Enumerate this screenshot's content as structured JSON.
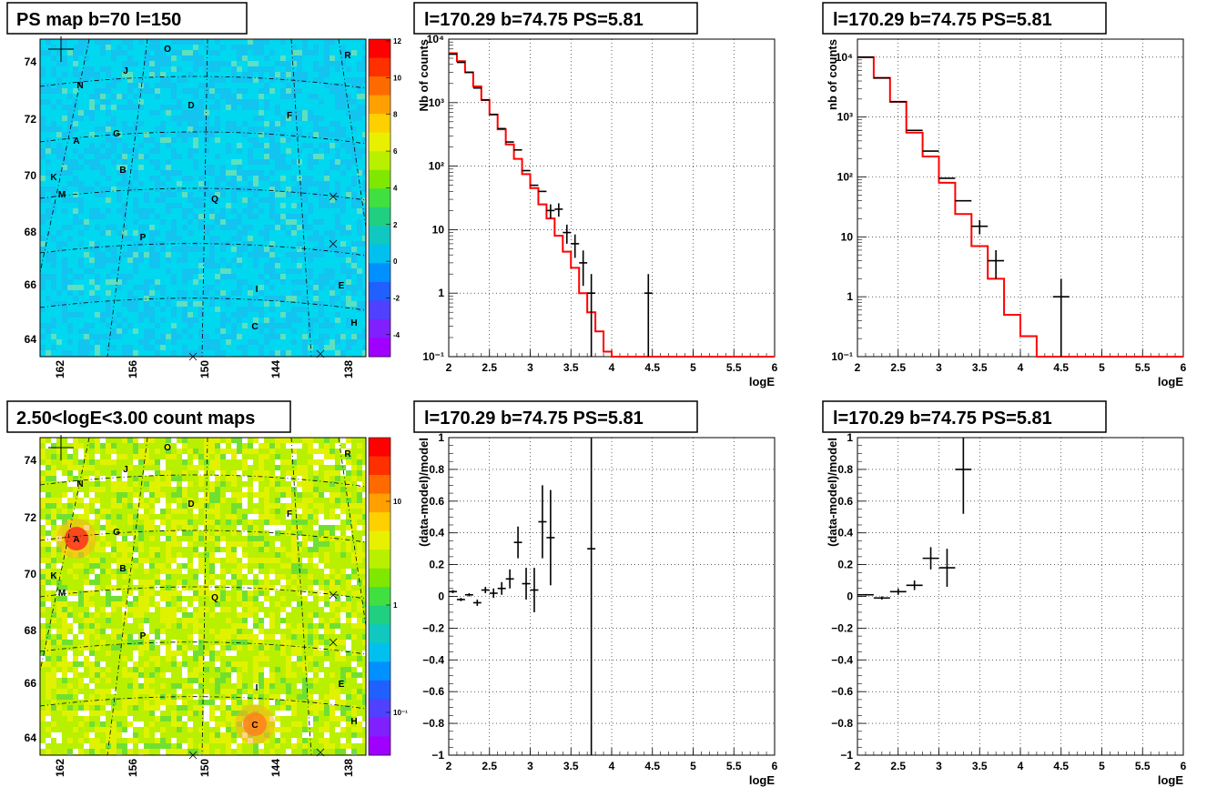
{
  "maps": [
    {
      "title": "PS map b=70 l=150",
      "colorbar": {
        "scale": "linear",
        "range": [
          -5,
          12
        ],
        "ticks": [
          "12",
          "10",
          "8",
          "6",
          "4",
          "2",
          "0",
          "-2",
          "-4"
        ]
      },
      "base_colors": [
        "#00d8f0",
        "#12c4ef",
        "#5ce0c0"
      ],
      "hotspots": []
    },
    {
      "title": "2.50<logE<3.00 count maps",
      "colorbar": {
        "scale": "log",
        "ticks": [
          "10",
          "1",
          "10⁻¹"
        ]
      },
      "base_colors": [
        "#b8f000",
        "#e0f200",
        "#70e030",
        "#ffffff"
      ],
      "hotspots": [
        {
          "source": "A",
          "color": "#ff3020"
        },
        {
          "source": "C",
          "color": "#ff8020"
        }
      ]
    }
  ],
  "map_axes": {
    "y_ticks": [
      "74",
      "72",
      "70",
      "68",
      "66",
      "64"
    ],
    "x_ticks": [
      "162",
      "156",
      "150",
      "144",
      "138"
    ]
  },
  "sources": [
    "O",
    "R",
    "J",
    "N",
    "D",
    "F",
    "A",
    "G",
    "B",
    "K",
    "M",
    "Q",
    "P",
    "I",
    "E",
    "C",
    "H"
  ],
  "chart_data": [
    {
      "type": "line",
      "title": "l=170.29 b=74.75 PS=5.81",
      "xlabel": "logE",
      "ylabel": "Nb of counts",
      "xlim": [
        2,
        6
      ],
      "ylim": [
        0.1,
        10000
      ],
      "yscale": "log",
      "x_ticks": [
        "2",
        "2.5",
        "3",
        "3.5",
        "4",
        "4.5",
        "5",
        "5.5",
        "6"
      ],
      "y_ticks": [
        "10⁴",
        "10³",
        "10²",
        "10",
        "1",
        "10⁻¹"
      ],
      "grid": true,
      "series": [
        {
          "kind": "step",
          "color": "#ff0000",
          "edges": [
            2.0,
            2.1,
            2.2,
            2.3,
            2.4,
            2.5,
            2.6,
            2.7,
            2.8,
            2.9,
            3.0,
            3.1,
            3.2,
            3.3,
            3.4,
            3.5,
            3.6,
            3.7,
            3.8,
            3.9,
            4.0,
            6.0
          ],
          "values": [
            6000,
            4500,
            3000,
            1800,
            1100,
            650,
            380,
            220,
            130,
            75,
            45,
            25,
            15,
            8,
            4.5,
            2.5,
            1.0,
            0.5,
            0.25,
            0.12,
            0.1
          ]
        },
        {
          "kind": "errorbars",
          "color": "#000000",
          "half_width": 0.05,
          "points": [
            [
              2.05,
              5800,
              0
            ],
            [
              2.15,
              4300,
              0
            ],
            [
              2.25,
              3000,
              0
            ],
            [
              2.35,
              1700,
              0
            ],
            [
              2.45,
              1100,
              0
            ],
            [
              2.55,
              650,
              0
            ],
            [
              2.65,
              390,
              0
            ],
            [
              2.75,
              240,
              0
            ],
            [
              2.85,
              180,
              0
            ],
            [
              2.95,
              85,
              0
            ],
            [
              3.05,
              50,
              0
            ],
            [
              3.15,
              40,
              0
            ],
            [
              3.25,
              20,
              5
            ],
            [
              3.35,
              21,
              5
            ],
            [
              3.45,
              9,
              3
            ],
            [
              3.55,
              6,
              2.4
            ],
            [
              3.65,
              3,
              1.7
            ],
            [
              3.75,
              1,
              1
            ],
            [
              4.45,
              1,
              1
            ]
          ]
        }
      ]
    },
    {
      "type": "line",
      "title": "l=170.29 b=74.75 PS=5.81",
      "xlabel": "logE",
      "ylabel": "nb of counts",
      "xlim": [
        2,
        6
      ],
      "ylim": [
        0.1,
        20000
      ],
      "yscale": "log",
      "x_ticks": [
        "2",
        "2.5",
        "3",
        "3.5",
        "4",
        "4.5",
        "5",
        "5.5",
        "6"
      ],
      "y_ticks": [
        "10⁴",
        "10³",
        "10²",
        "10",
        "1",
        "10⁻¹"
      ],
      "grid": true,
      "series": [
        {
          "kind": "step",
          "color": "#ff0000",
          "edges": [
            2.0,
            2.2,
            2.4,
            2.6,
            2.8,
            3.0,
            3.2,
            3.4,
            3.6,
            3.8,
            4.0,
            4.2,
            6.0
          ],
          "values": [
            10000,
            4500,
            1800,
            550,
            220,
            80,
            24,
            7,
            2,
            0.5,
            0.22,
            0.1
          ]
        },
        {
          "kind": "errorbars",
          "color": "#000000",
          "half_width": 0.1,
          "points": [
            [
              2.1,
              10000,
              0
            ],
            [
              2.3,
              4500,
              0
            ],
            [
              2.5,
              1800,
              0
            ],
            [
              2.7,
              600,
              0
            ],
            [
              2.9,
              270,
              0
            ],
            [
              3.1,
              95,
              0
            ],
            [
              3.3,
              40,
              0
            ],
            [
              3.5,
              15,
              4
            ],
            [
              3.7,
              4,
              2
            ],
            [
              4.5,
              1,
              1
            ]
          ]
        }
      ]
    },
    {
      "type": "scatter",
      "title": "l=170.29 b=74.75 PS=5.81",
      "xlabel": "logE",
      "ylabel": "(data-model)/model",
      "xlim": [
        2,
        6
      ],
      "ylim": [
        -1,
        1
      ],
      "yscale": "linear",
      "x_ticks": [
        "2",
        "2.5",
        "3",
        "3.5",
        "4",
        "4.5",
        "5",
        "5.5",
        "6"
      ],
      "y_ticks": [
        "1",
        "0.8",
        "0.6",
        "0.4",
        "0.2",
        "0",
        "−0.2",
        "−0.4",
        "−0.6",
        "−0.8",
        "−1"
      ],
      "grid": true,
      "series": [
        {
          "kind": "errorbars",
          "color": "#000000",
          "half_width": 0.05,
          "points": [
            [
              2.05,
              0.03,
              0.01
            ],
            [
              2.15,
              -0.02,
              0.01
            ],
            [
              2.25,
              0.01,
              0.01
            ],
            [
              2.35,
              -0.04,
              0.02
            ],
            [
              2.45,
              0.04,
              0.02
            ],
            [
              2.55,
              0.02,
              0.03
            ],
            [
              2.65,
              0.05,
              0.04
            ],
            [
              2.75,
              0.11,
              0.06
            ],
            [
              2.85,
              0.34,
              0.1
            ],
            [
              2.95,
              0.08,
              0.1
            ],
            [
              3.05,
              0.04,
              0.14
            ],
            [
              3.15,
              0.47,
              0.23
            ],
            [
              3.25,
              0.37,
              0.3
            ],
            [
              3.75,
              0.3,
              1.5
            ]
          ]
        }
      ]
    },
    {
      "type": "scatter",
      "title": "l=170.29 b=74.75 PS=5.81",
      "xlabel": "logE",
      "ylabel": "(data-model)/model",
      "xlim": [
        2,
        6
      ],
      "ylim": [
        -1,
        1
      ],
      "yscale": "linear",
      "x_ticks": [
        "2",
        "2.5",
        "3",
        "3.5",
        "4",
        "4.5",
        "5",
        "5.5",
        "6"
      ],
      "y_ticks": [
        "1",
        "0.8",
        "0.6",
        "0.4",
        "0.2",
        "0",
        "−0.2",
        "−0.4",
        "−0.6",
        "−0.8",
        "−1"
      ],
      "grid": true,
      "series": [
        {
          "kind": "errorbars",
          "color": "#000000",
          "half_width": 0.1,
          "points": [
            [
              2.1,
              0.01,
              0.005
            ],
            [
              2.3,
              -0.01,
              0.01
            ],
            [
              2.5,
              0.03,
              0.02
            ],
            [
              2.7,
              0.07,
              0.03
            ],
            [
              2.9,
              0.24,
              0.07
            ],
            [
              3.1,
              0.18,
              0.12
            ],
            [
              3.3,
              0.8,
              0.28
            ]
          ]
        }
      ]
    }
  ]
}
